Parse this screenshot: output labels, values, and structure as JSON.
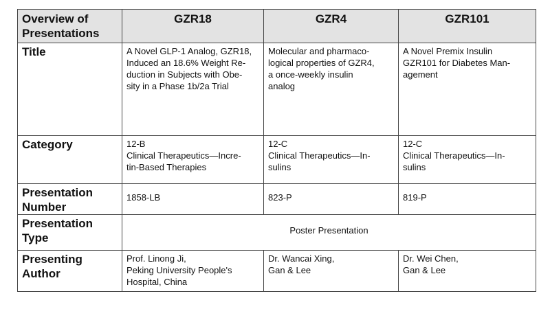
{
  "header": {
    "corner": "Overview of\nPresentations",
    "columns": [
      "GZR18",
      "GZR4",
      "GZR101"
    ]
  },
  "rows": [
    {
      "label": "Title",
      "cells": [
        "A Novel GLP-1 Analog, GZR18,\nInduced an 18.6% Weight Re-\nduction in Subjects with Obe-\nsity in a Phase 1b/2a Trial",
        "Molecular and pharmaco-\nlogical properties of GZR4,\na once-weekly insulin\nanalog",
        "A Novel Premix Insulin\nGZR101 for Diabetes Man-\nagement"
      ]
    },
    {
      "label": "Category",
      "cells": [
        "12-B\nClinical Therapeutics—Incre-\ntin-Based Therapies",
        "12-C\n Clinical Therapeutics—In-\nsulins",
        "12-C\n Clinical Therapeutics—In-\nsulins"
      ]
    },
    {
      "label": "Presentation\nNumber",
      "cells": [
        "1858-LB",
        "823-P",
        "819-P"
      ]
    },
    {
      "label": "Presentation\nType",
      "merged": "Poster Presentation"
    },
    {
      "label": "Presenting\nAuthor",
      "cells": [
        "Prof. Linong Ji,\nPeking University People's\nHospital, China",
        "Dr. Wancai Xing,\nGan & Lee",
        "Dr. Wei Chen,\nGan & Lee"
      ]
    }
  ]
}
